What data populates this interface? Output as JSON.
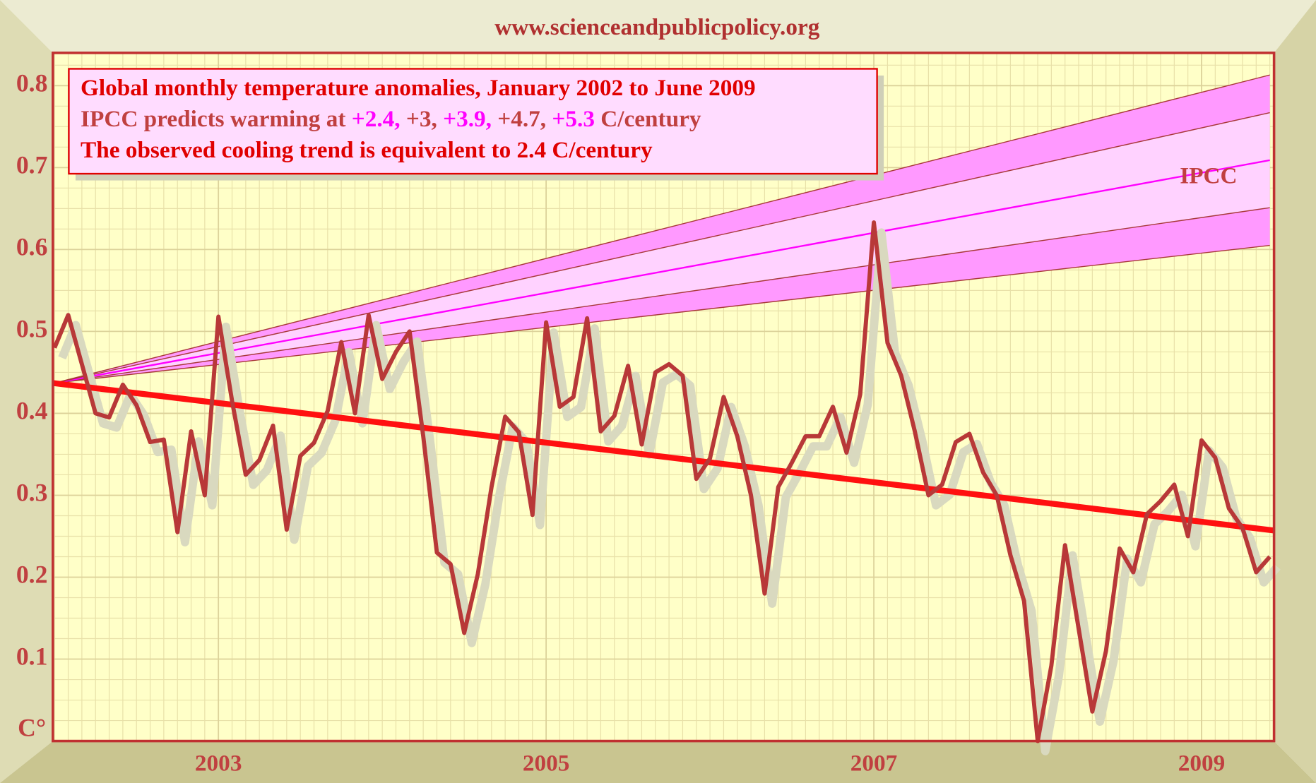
{
  "chart_data": {
    "type": "line",
    "subtitle": "www.scienceandpublicpolicy.org",
    "annotation_lines": [
      {
        "segments": [
          {
            "text": "Global monthly temperature anomalies, January 2002 to June 2009",
            "color": "#e00000"
          }
        ]
      },
      {
        "segments": [
          {
            "text": "IPCC predicts warming at ",
            "color": "#c04040"
          },
          {
            "text": "+2.4,",
            "color": "#ff00ff"
          },
          {
            "text": " +3,",
            "color": "#c04040"
          },
          {
            "text": " +3.9,",
            "color": "#ff00ff"
          },
          {
            "text": " +4.7,",
            "color": "#c04040"
          },
          {
            "text": " +5.3",
            "color": "#ff00ff"
          },
          {
            "text": " C/century",
            "color": "#c04040"
          }
        ]
      },
      {
        "segments": [
          {
            "text": "The observed cooling trend is equivalent to 2.4 C/century",
            "color": "#e00000"
          }
        ]
      }
    ],
    "y_label": "C°",
    "categories": [
      null,
      null,
      null,
      null,
      null,
      null,
      null,
      null,
      null,
      null,
      null,
      null,
      "2003",
      null,
      null,
      null,
      null,
      null,
      null,
      null,
      null,
      null,
      null,
      null,
      null,
      null,
      null,
      null,
      null,
      null,
      null,
      null,
      null,
      null,
      null,
      null,
      "2005",
      null,
      null,
      null,
      null,
      null,
      null,
      null,
      null,
      null,
      null,
      null,
      null,
      null,
      null,
      null,
      null,
      null,
      null,
      null,
      null,
      null,
      null,
      null,
      "2007",
      null,
      null,
      null,
      null,
      null,
      null,
      null,
      null,
      null,
      null,
      null,
      null,
      null,
      null,
      null,
      null,
      null,
      null,
      null,
      null,
      null,
      null,
      null,
      "2009",
      null,
      null,
      null,
      null,
      null
    ],
    "values": [
      0.48,
      0.52,
      0.46,
      0.4,
      0.395,
      0.435,
      0.41,
      0.365,
      0.368,
      0.255,
      0.378,
      0.3,
      0.518,
      0.415,
      0.325,
      0.343,
      0.385,
      0.258,
      0.348,
      0.364,
      0.403,
      0.487,
      0.4,
      0.52,
      0.442,
      0.475,
      0.5,
      0.372,
      0.23,
      0.216,
      0.132,
      0.204,
      0.31,
      0.396,
      0.377,
      0.276,
      0.511,
      0.408,
      0.42,
      0.516,
      0.378,
      0.397,
      0.458,
      0.362,
      0.45,
      0.46,
      0.446,
      0.32,
      0.345,
      0.42,
      0.372,
      0.3,
      0.18,
      0.31,
      0.34,
      0.372,
      0.372,
      0.408,
      0.352,
      0.423,
      0.633,
      0.486,
      0.446,
      0.378,
      0.3,
      0.313,
      0.365,
      0.375,
      0.328,
      0.3,
      0.227,
      0.171,
      0.0,
      0.092,
      0.239,
      0.137,
      0.036,
      0.11,
      0.235,
      0.206,
      0.277,
      0.293,
      0.313,
      0.25,
      0.367,
      0.346,
      0.284,
      0.26,
      0.206,
      0.225
    ],
    "color": "#b83838",
    "shadow_color": "#d9d9bf",
    "trend": {
      "values": [
        0.437,
        0.257
      ],
      "color": "#ff1010"
    },
    "ipcc": {
      "label": "IPCC",
      "start": 0.437,
      "ends": [
        0.605,
        0.651,
        0.709,
        0.767,
        0.813
      ],
      "line_color": "#a83838",
      "center_color": "#ff00ff",
      "band_colors": [
        "#ff99ff",
        "#ffd2ff"
      ]
    },
    "ylim": [
      0,
      0.84
    ],
    "yticks": [
      0.1,
      0.2,
      0.3,
      0.4,
      0.5,
      0.6,
      0.7,
      0.8
    ],
    "grid": true
  }
}
